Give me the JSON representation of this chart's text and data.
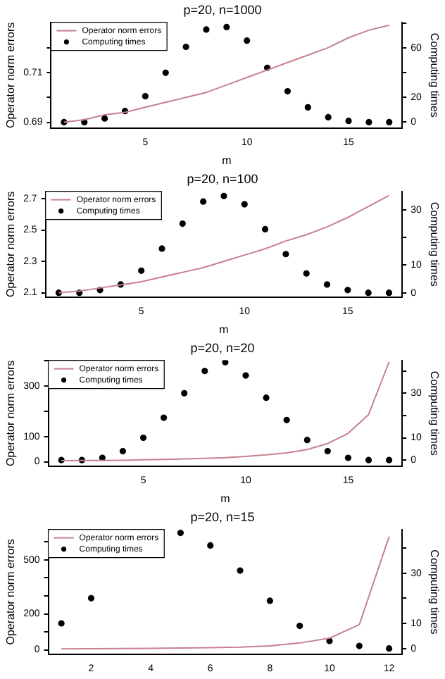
{
  "chart_data": [
    {
      "type": "line",
      "title": "p=20, n=1000",
      "xlabel": "m",
      "ylabel": "Operator norm errors",
      "y2label": "Computing times",
      "legend": "top left",
      "grid": false,
      "x": [
        1,
        2,
        3,
        4,
        5,
        6,
        7,
        8,
        9,
        10,
        11,
        12,
        13,
        14,
        15,
        16,
        17
      ],
      "xlim": [
        0.36,
        17.64
      ],
      "xticks": [
        5,
        10,
        15
      ],
      "ylim": [
        0.6876,
        0.7302
      ],
      "yticks": [
        0.69,
        {
          "value": 0.7,
          "label": null
        },
        0.71,
        {
          "value": 0.72,
          "label": null
        }
      ],
      "y2lim": [
        -4.9,
        80.9
      ],
      "y2ticks": [
        0,
        20,
        {
          "value": 40,
          "label": null
        },
        60,
        {
          "value": 80,
          "label": null
        }
      ],
      "series": [
        {
          "name": "Operator norm errors",
          "type": "line",
          "color": "#c8808c",
          "marker": "none",
          "values": [
            0.69,
            0.691,
            0.693,
            0.694,
            0.696,
            0.698,
            0.7,
            0.702,
            0.705,
            0.708,
            0.711,
            0.714,
            0.717,
            0.72,
            0.724,
            0.727,
            0.729
          ]
        },
        {
          "name": "Computing times",
          "type": "scatter",
          "axis": "y2",
          "color": "#000000",
          "marker": "circle",
          "values": [
            0,
            0,
            3,
            9,
            21,
            40,
            61,
            75,
            77,
            66,
            44,
            25,
            12,
            4,
            1,
            0,
            0
          ]
        }
      ]
    },
    {
      "type": "line",
      "title": "p=20, n=100",
      "xlabel": "m",
      "ylabel": "Operator norm errors",
      "y2label": "Computing times",
      "legend": "top left",
      "grid": false,
      "x": [
        1,
        2,
        3,
        4,
        5,
        6,
        7,
        8,
        9,
        10,
        11,
        12,
        13,
        14,
        15,
        16,
        17
      ],
      "xlim": [
        0.36,
        17.64
      ],
      "xticks": [
        5,
        10,
        15
      ],
      "ylim": [
        2.071,
        2.747
      ],
      "yticks": [
        2.1,
        2.3,
        2.5,
        2.7
      ],
      "y2lim": [
        -1.6,
        36.7
      ],
      "y2ticks": [
        0,
        10,
        {
          "value": 20,
          "label": null
        },
        30
      ],
      "series": [
        {
          "name": "Operator norm errors",
          "type": "line",
          "color": "#c8808c",
          "marker": "none",
          "values": [
            2.1,
            2.11,
            2.13,
            2.15,
            2.17,
            2.2,
            2.23,
            2.26,
            2.3,
            2.34,
            2.38,
            2.43,
            2.47,
            2.52,
            2.58,
            2.65,
            2.72
          ]
        },
        {
          "name": "Computing times",
          "type": "scatter",
          "axis": "y2",
          "color": "#000000",
          "marker": "circle",
          "values": [
            0,
            0,
            1,
            3,
            8,
            16,
            25,
            33,
            35,
            32,
            23,
            14,
            7,
            3,
            1,
            0,
            0
          ]
        }
      ]
    },
    {
      "type": "line",
      "title": "p=20, n=20",
      "xlabel": "m",
      "ylabel": "Operator norm errors",
      "y2label": "Computing times",
      "legend": "top left",
      "grid": false,
      "x": [
        1,
        2,
        3,
        4,
        5,
        6,
        7,
        8,
        9,
        10,
        11,
        12,
        13,
        14,
        15,
        16,
        17
      ],
      "xlim": [
        0.36,
        17.64
      ],
      "xticks": [
        5,
        10,
        15
      ],
      "ylim": [
        -18,
        401
      ],
      "yticks": [
        0,
        100,
        {
          "value": 200,
          "label": null
        },
        300,
        {
          "value": 400,
          "label": null
        }
      ],
      "y2lim": [
        -2.8,
        44.8
      ],
      "y2ticks": [
        0,
        10,
        {
          "value": 20,
          "label": null
        },
        30,
        {
          "value": 40,
          "label": null
        }
      ],
      "series": [
        {
          "name": "Operator norm errors",
          "type": "line",
          "color": "#c8808c",
          "marker": "none",
          "values": [
            4,
            5,
            5,
            6,
            8,
            9,
            11,
            13,
            16,
            21,
            27,
            35,
            48,
            72,
            112,
            187,
            395
          ]
        },
        {
          "name": "Computing times",
          "type": "scatter",
          "axis": "y2",
          "color": "#000000",
          "marker": "circle",
          "values": [
            0,
            0,
            1,
            4,
            10,
            19,
            30,
            40,
            44,
            38,
            28,
            18,
            9,
            4,
            1,
            0,
            0
          ]
        }
      ]
    },
    {
      "type": "line",
      "title": "p=20, n=15",
      "ylabel": "Operator norm errors",
      "y2label": "Computing times",
      "legend": "top left",
      "grid": false,
      "x": [
        1,
        2,
        3,
        4,
        5,
        6,
        7,
        8,
        9,
        10,
        11,
        12
      ],
      "xlim": [
        0.56,
        12.44
      ],
      "xticks": [
        2,
        4,
        6,
        8,
        10,
        12
      ],
      "ylim": [
        -26,
        670
      ],
      "yticks": [
        0,
        {
          "value": 100,
          "label": null
        },
        200,
        {
          "value": 300,
          "label": null
        },
        {
          "value": 400,
          "label": null
        },
        500,
        {
          "value": 600,
          "label": null
        }
      ],
      "y2lim": [
        -2.4,
        47.4
      ],
      "y2ticks": [
        0,
        10,
        {
          "value": 20,
          "label": null
        },
        30,
        {
          "value": 40,
          "label": null
        }
      ],
      "series": [
        {
          "name": "Operator norm errors",
          "type": "line",
          "color": "#c8808c",
          "marker": "none",
          "values": [
            5,
            6,
            7,
            8,
            10,
            12,
            15,
            22,
            38,
            65,
            140,
            630
          ]
        },
        {
          "name": "Computing times",
          "type": "scatter",
          "axis": "y2",
          "color": "#000000",
          "marker": "circle",
          "values": [
            10,
            20,
            null,
            null,
            46,
            41,
            31,
            19,
            9,
            3,
            1,
            0
          ]
        }
      ]
    }
  ]
}
